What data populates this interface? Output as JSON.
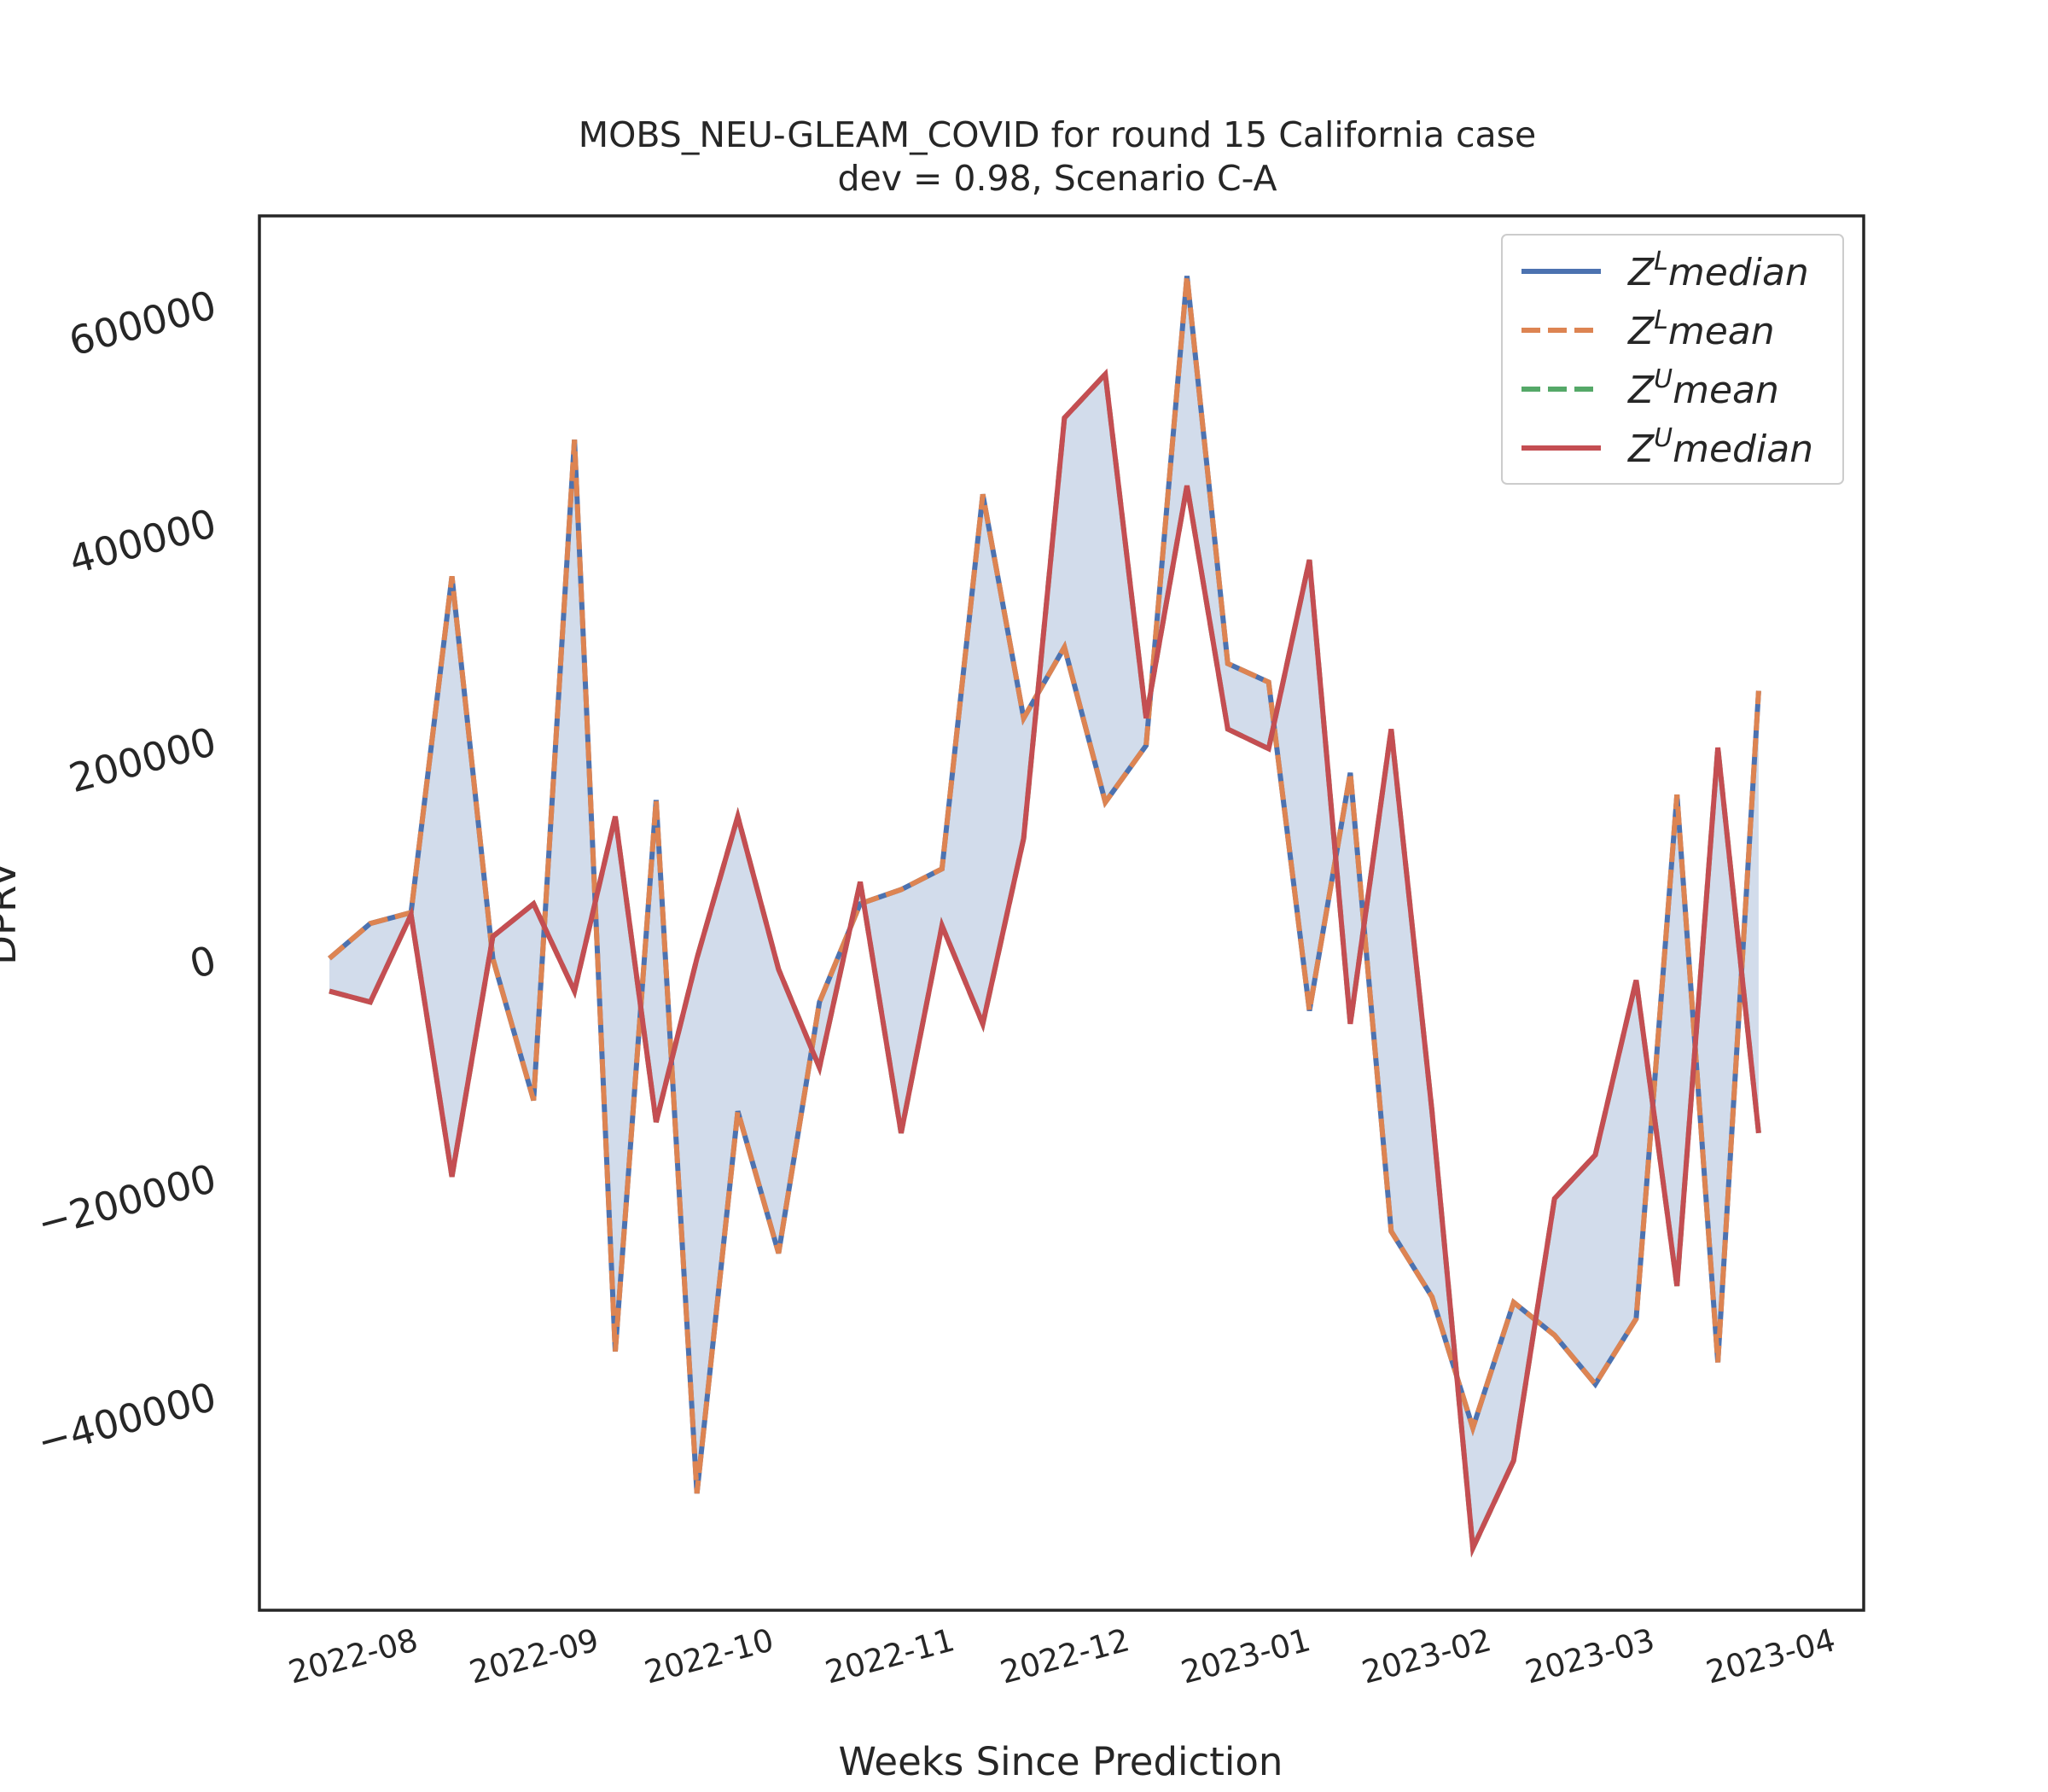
{
  "chart_data": {
    "type": "line",
    "title": "MOBS_NEU-GLEAM_COVID for round 15 California case",
    "subtitle": "dev = 0.98, Scenario C-A",
    "xlabel": "Weeks Since Prediction",
    "ylabel": "DPRV",
    "x_ticks": [
      "2022-08",
      "2022-09",
      "2022-10",
      "2022-11",
      "2022-12",
      "2023-01",
      "2023-02",
      "2023-03",
      "2023-04"
    ],
    "x_tick_dates": [
      "2022-08-01",
      "2022-09-01",
      "2022-10-01",
      "2022-11-01",
      "2022-12-01",
      "2023-01-01",
      "2023-02-01",
      "2023-03-01",
      "2023-04-01"
    ],
    "y_ticks": [
      -400000,
      -200000,
      0,
      200000,
      400000,
      600000
    ],
    "y_tick_labels": [
      "−400000",
      "−200000",
      "0",
      "200000",
      "400000",
      "600000"
    ],
    "xlim": [
      "2022-07-06",
      "2023-04-07"
    ],
    "ylim": [
      -597000,
      680000
    ],
    "grid": false,
    "legend_position": "top-right",
    "fill_between": [
      "Z^L median",
      "Z^U median"
    ],
    "x": [
      "2022-07-18",
      "2022-07-25",
      "2022-08-01",
      "2022-08-08",
      "2022-08-15",
      "2022-08-22",
      "2022-08-29",
      "2022-09-05",
      "2022-09-12",
      "2022-09-19",
      "2022-09-26",
      "2022-10-03",
      "2022-10-10",
      "2022-10-17",
      "2022-10-24",
      "2022-10-31",
      "2022-11-07",
      "2022-11-14",
      "2022-11-21",
      "2022-11-28",
      "2022-12-05",
      "2022-12-12",
      "2022-12-19",
      "2022-12-26",
      "2023-01-02",
      "2023-01-09",
      "2023-01-16",
      "2023-01-23",
      "2023-01-30",
      "2023-02-06",
      "2023-02-13",
      "2023-02-20",
      "2023-02-27",
      "2023-03-06",
      "2023-03-13",
      "2023-03-20"
    ],
    "series": [
      {
        "name": "Z^L median",
        "color": "#4c72b0",
        "style": "solid",
        "values": [
          0,
          32000,
          42000,
          350000,
          0,
          -130000,
          475000,
          -360000,
          145000,
          -490000,
          -140000,
          -270000,
          -40000,
          50000,
          63000,
          82000,
          425000,
          220000,
          285000,
          143000,
          195000,
          625000,
          270000,
          253000,
          -48000,
          170000,
          -250000,
          -310000,
          -430000,
          -315000,
          -345000,
          -390000,
          -330000,
          150000,
          -370000,
          245000
        ]
      },
      {
        "name": "Z^L mean",
        "color": "#dd8452",
        "style": "dashed",
        "values": [
          0,
          32000,
          42000,
          350000,
          0,
          -130000,
          475000,
          -360000,
          145000,
          -490000,
          -140000,
          -270000,
          -40000,
          50000,
          63000,
          82000,
          425000,
          220000,
          285000,
          143000,
          195000,
          625000,
          270000,
          253000,
          -48000,
          170000,
          -250000,
          -310000,
          -430000,
          -315000,
          -345000,
          -390000,
          -330000,
          150000,
          -370000,
          245000
        ]
      },
      {
        "name": "Z^U mean",
        "color": "#55a868",
        "style": "dashed",
        "values": [
          -30000,
          -40000,
          40000,
          -200000,
          20000,
          50000,
          -30000,
          130000,
          -150000,
          0,
          130000,
          -10000,
          -100000,
          70000,
          -160000,
          30000,
          -60000,
          110000,
          495000,
          535000,
          220000,
          433000,
          210000,
          192000,
          365000,
          -60000,
          210000,
          -140000,
          -540000,
          -460000,
          -220000,
          -180000,
          -20000,
          -300000,
          193000,
          -160000
        ]
      },
      {
        "name": "Z^U median",
        "color": "#c44e52",
        "style": "solid",
        "values": [
          -30000,
          -40000,
          40000,
          -200000,
          20000,
          50000,
          -30000,
          130000,
          -150000,
          0,
          130000,
          -10000,
          -100000,
          70000,
          -160000,
          30000,
          -60000,
          110000,
          495000,
          535000,
          220000,
          433000,
          210000,
          192000,
          365000,
          -60000,
          210000,
          -140000,
          -540000,
          -460000,
          -220000,
          -180000,
          -20000,
          -300000,
          193000,
          -160000
        ]
      }
    ],
    "legend": [
      {
        "base": "Z",
        "sup": "L",
        "label": "median"
      },
      {
        "base": "Z",
        "sup": "L",
        "label": "mean"
      },
      {
        "base": "Z",
        "sup": "U",
        "label": "mean"
      },
      {
        "base": "Z",
        "sup": "U",
        "label": "median"
      }
    ],
    "fill_color": "#4c72b0"
  }
}
